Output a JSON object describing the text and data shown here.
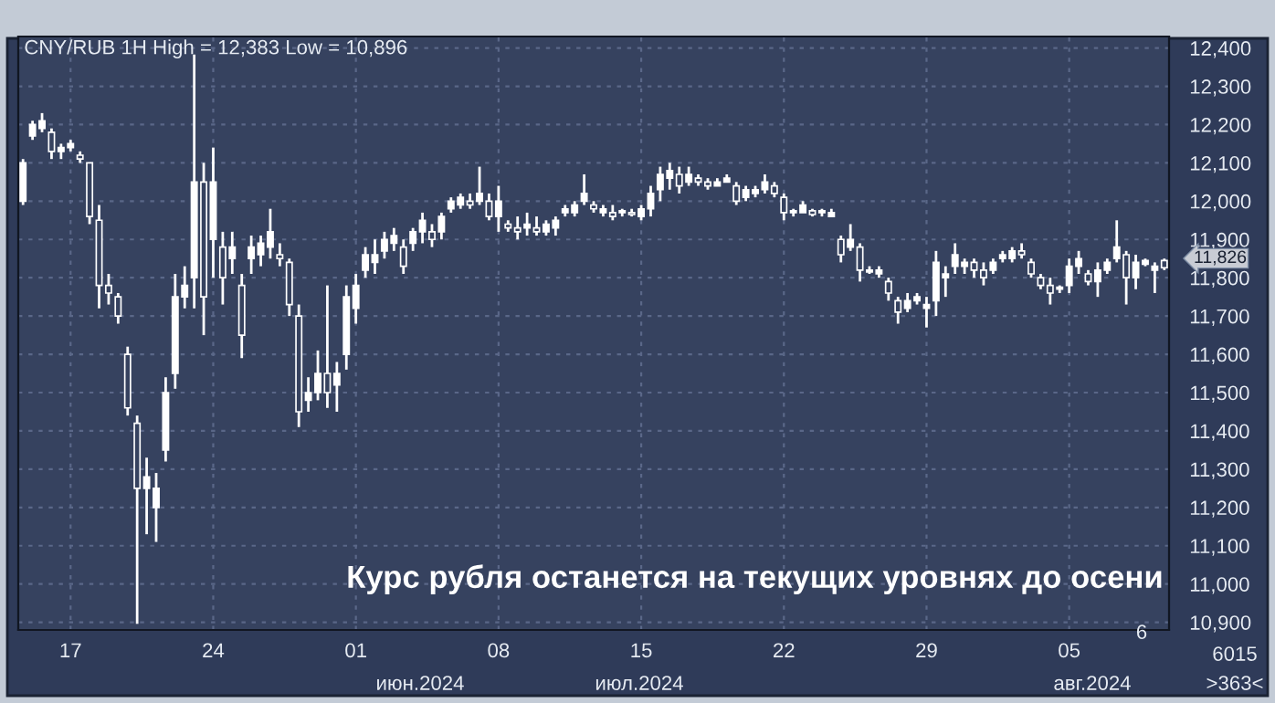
{
  "chart_data": {
    "type": "candlestick",
    "title": "CNY/RUB 1H High = 12,383 Low = 10,896",
    "subtitle": "Курс рубля останется на текущих уровнях до осени",
    "color": "#ffffff",
    "grid": true,
    "categories": [
      null,
      null,
      null,
      null,
      null,
      "17",
      null,
      null,
      null,
      null,
      null,
      null,
      null,
      null,
      null,
      null,
      null,
      null,
      null,
      null,
      "24",
      null,
      null,
      null,
      null,
      null,
      null,
      null,
      null,
      null,
      null,
      null,
      null,
      null,
      null,
      "01",
      null,
      null,
      null,
      null,
      null,
      null,
      null,
      null,
      null,
      null,
      null,
      null,
      null,
      null,
      "08",
      null,
      null,
      null,
      null,
      null,
      null,
      null,
      null,
      null,
      null,
      null,
      null,
      null,
      null,
      "15",
      null,
      null,
      null,
      null,
      null,
      null,
      null,
      null,
      null,
      null,
      null,
      null,
      null,
      null,
      "22",
      null,
      null,
      null,
      null,
      null,
      null,
      null,
      null,
      null,
      null,
      null,
      null,
      null,
      null,
      "29",
      null,
      null,
      null,
      null,
      null,
      null,
      null,
      null,
      null,
      null,
      null,
      null,
      null,
      null,
      "05",
      null,
      null,
      null,
      null,
      null,
      null,
      null,
      null,
      null,
      null
    ],
    "ohlc": [
      [
        12000,
        12110,
        11990,
        12100
      ],
      [
        12170,
        12210,
        12160,
        12200
      ],
      [
        12190,
        12230,
        12180,
        12210
      ],
      [
        12180,
        12190,
        12110,
        12130
      ],
      [
        12130,
        12150,
        12110,
        12140
      ],
      [
        12140,
        12160,
        12130,
        12150
      ],
      [
        12120,
        12130,
        12100,
        12110
      ],
      [
        12100,
        12100,
        11940,
        11960
      ],
      [
        11950,
        11990,
        11720,
        11780
      ],
      [
        11780,
        11810,
        11730,
        11760
      ],
      [
        11750,
        11760,
        11680,
        11700
      ],
      [
        11600,
        11620,
        11440,
        11460
      ],
      [
        11420,
        11440,
        10896,
        11250
      ],
      [
        11250,
        11330,
        11130,
        11280
      ],
      [
        11200,
        11290,
        11110,
        11250
      ],
      [
        11350,
        11540,
        11320,
        11500
      ],
      [
        11550,
        11810,
        11510,
        11750
      ],
      [
        11750,
        11830,
        11720,
        11780
      ],
      [
        11800,
        12383,
        11720,
        12050
      ],
      [
        12050,
        12100,
        11650,
        11750
      ],
      [
        11900,
        12140,
        11800,
        12050
      ],
      [
        11880,
        11920,
        11730,
        11800
      ],
      [
        11850,
        11920,
        11810,
        11880
      ],
      [
        11780,
        11810,
        11590,
        11650
      ],
      [
        11850,
        11910,
        11810,
        11880
      ],
      [
        11860,
        11910,
        11830,
        11890
      ],
      [
        11880,
        11980,
        11850,
        11920
      ],
      [
        11860,
        11890,
        11830,
        11850
      ],
      [
        11840,
        11850,
        11700,
        11730
      ],
      [
        11700,
        11730,
        11410,
        11450
      ],
      [
        11480,
        11540,
        11450,
        11500
      ],
      [
        11500,
        11610,
        11480,
        11550
      ],
      [
        11550,
        11780,
        11460,
        11500
      ],
      [
        11520,
        11580,
        11450,
        11550
      ],
      [
        11600,
        11780,
        11560,
        11750
      ],
      [
        11720,
        11810,
        11680,
        11780
      ],
      [
        11820,
        11880,
        11800,
        11860
      ],
      [
        11840,
        11900,
        11810,
        11860
      ],
      [
        11870,
        11920,
        11850,
        11900
      ],
      [
        11890,
        11930,
        11870,
        11910
      ],
      [
        11880,
        11900,
        11810,
        11830
      ],
      [
        11890,
        11930,
        11870,
        11920
      ],
      [
        11920,
        11970,
        11890,
        11950
      ],
      [
        11920,
        11940,
        11880,
        11900
      ],
      [
        11920,
        11970,
        11900,
        11960
      ],
      [
        11980,
        12010,
        11970,
        12000
      ],
      [
        11990,
        12020,
        11980,
        12010
      ],
      [
        12000,
        12020,
        11980,
        11990
      ],
      [
        12000,
        12090,
        11990,
        12020
      ],
      [
        12000,
        12020,
        11950,
        11960
      ],
      [
        11960,
        12040,
        11920,
        12000
      ],
      [
        11940,
        11950,
        11920,
        11930
      ],
      [
        11930,
        11960,
        11900,
        11920
      ],
      [
        11930,
        11970,
        11910,
        11940
      ],
      [
        11930,
        11960,
        11910,
        11920
      ],
      [
        11920,
        11950,
        11910,
        11940
      ],
      [
        11930,
        11960,
        11910,
        11950
      ],
      [
        11970,
        11990,
        11960,
        11980
      ],
      [
        11970,
        12000,
        11960,
        11990
      ],
      [
        12000,
        12070,
        11990,
        12020
      ],
      [
        11990,
        12000,
        11970,
        11980
      ],
      [
        11970,
        11990,
        11960,
        11980
      ],
      [
        11970,
        11990,
        11950,
        11960
      ],
      [
        11970,
        11980,
        11960,
        11975
      ],
      [
        11970,
        11980,
        11960,
        11965
      ],
      [
        11960,
        11990,
        11950,
        11980
      ],
      [
        11980,
        12040,
        11960,
        12020
      ],
      [
        12030,
        12090,
        12000,
        12070
      ],
      [
        12060,
        12100,
        12030,
        12080
      ],
      [
        12070,
        12090,
        12020,
        12040
      ],
      [
        12050,
        12090,
        12040,
        12070
      ],
      [
        12060,
        12070,
        12040,
        12050
      ],
      [
        12050,
        12060,
        12030,
        12040
      ],
      [
        12040,
        12060,
        12040,
        12050
      ],
      [
        12050,
        12070,
        12050,
        12060
      ],
      [
        12040,
        12050,
        11990,
        12000
      ],
      [
        12010,
        12040,
        12000,
        12030
      ],
      [
        12020,
        12040,
        12010,
        12030
      ],
      [
        12030,
        12070,
        12020,
        12050
      ],
      [
        12040,
        12050,
        12010,
        12020
      ],
      [
        12010,
        12020,
        11950,
        11970
      ],
      [
        11970,
        11980,
        11960,
        11975
      ],
      [
        11970,
        12000,
        11970,
        11990
      ],
      [
        11975,
        11980,
        11960,
        11965
      ],
      [
        11970,
        11980,
        11960,
        11975
      ],
      [
        11960,
        11980,
        11960,
        11970
      ],
      [
        11900,
        11910,
        11840,
        11860
      ],
      [
        11880,
        11940,
        11870,
        11900
      ],
      [
        11880,
        11890,
        11790,
        11820
      ],
      [
        11815,
        11830,
        11810,
        11820
      ],
      [
        11810,
        11830,
        11800,
        11820
      ],
      [
        11790,
        11800,
        11740,
        11760
      ],
      [
        11740,
        11750,
        11680,
        11710
      ],
      [
        11720,
        11760,
        11710,
        11740
      ],
      [
        11740,
        11760,
        11730,
        11750
      ],
      [
        11720,
        11750,
        11670,
        11730
      ],
      [
        11740,
        11870,
        11700,
        11840
      ],
      [
        11800,
        11830,
        11750,
        11810
      ],
      [
        11830,
        11890,
        11810,
        11860
      ],
      [
        11830,
        11850,
        11810,
        11840
      ],
      [
        11840,
        11850,
        11800,
        11820
      ],
      [
        11820,
        11840,
        11780,
        11800
      ],
      [
        11820,
        11850,
        11810,
        11840
      ],
      [
        11850,
        11870,
        11840,
        11860
      ],
      [
        11850,
        11880,
        11840,
        11870
      ],
      [
        11870,
        11890,
        11850,
        11860
      ],
      [
        11840,
        11850,
        11800,
        11810
      ],
      [
        11800,
        11810,
        11770,
        11780
      ],
      [
        11780,
        11800,
        11730,
        11760
      ],
      [
        11770,
        11780,
        11760,
        11775
      ],
      [
        11780,
        11850,
        11760,
        11830
      ],
      [
        11830,
        11870,
        11810,
        11850
      ],
      [
        11810,
        11820,
        11780,
        11790
      ],
      [
        11790,
        11840,
        11750,
        11820
      ],
      [
        11820,
        11850,
        11810,
        11840
      ],
      [
        11850,
        11950,
        11840,
        11880
      ],
      [
        11860,
        11870,
        11730,
        11800
      ],
      [
        11800,
        11860,
        11770,
        11840
      ],
      [
        11835,
        11850,
        11830,
        11845
      ],
      [
        11820,
        11840,
        11760,
        11830
      ],
      [
        11845,
        11850,
        11820,
        11826
      ]
    ],
    "ylim": [
      10880,
      12430
    ],
    "yticks": [
      {
        "value": 10900,
        "label": "10,900"
      },
      {
        "value": 11000,
        "label": "11,000"
      },
      {
        "value": 11100,
        "label": "11,100"
      },
      {
        "value": 11200,
        "label": "11,200"
      },
      {
        "value": 11300,
        "label": "11,300"
      },
      {
        "value": 11400,
        "label": "11,400"
      },
      {
        "value": 11500,
        "label": "11,500"
      },
      {
        "value": 11600,
        "label": "11,600"
      },
      {
        "value": 11700,
        "label": "11,700"
      },
      {
        "value": 11800,
        "label": "11,800"
      },
      {
        "value": 11900,
        "label": "11,900"
      },
      {
        "value": 12000,
        "label": "12,000"
      },
      {
        "value": 12100,
        "label": "12,100"
      },
      {
        "value": 12200,
        "label": "12,200"
      },
      {
        "value": 12300,
        "label": "12,300"
      },
      {
        "value": 12400,
        "label": "12,400"
      }
    ],
    "annotations": [
      "июн.2024",
      "июл.2024",
      "авг.2024",
      "6",
      "6015",
      ">363<",
      "11,826"
    ]
  }
}
